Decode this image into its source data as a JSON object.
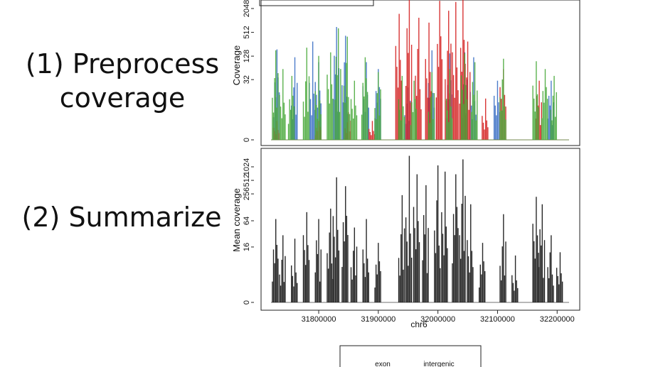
{
  "steps": {
    "step1_line1": "(1) Preprocess",
    "step1_line2": "coverage",
    "step2": "(2) Summarize"
  },
  "chart_data": [
    {
      "type": "area",
      "ylabel": "Coverage",
      "yscale": "log",
      "yticks": [
        0,
        32,
        128,
        512,
        2048
      ],
      "series": [
        {
          "color": "#3a6fc4",
          "values": [
            [
              31730000,
              190
            ],
            [
              31760000,
              120
            ],
            [
              31790000,
              300
            ],
            [
              31800000,
              90
            ],
            [
              31830000,
              700
            ],
            [
              31845000,
              420
            ],
            [
              31880000,
              90
            ],
            [
              31900000,
              60
            ],
            [
              31950000,
              20
            ],
            [
              31990000,
              180
            ],
            [
              32020000,
              150
            ],
            [
              32045000,
              160
            ],
            [
              32060000,
              120
            ],
            [
              32100000,
              30
            ],
            [
              32190000,
              30
            ]
          ]
        },
        {
          "color": "#d42020",
          "values": [
            [
              31730000,
              2
            ],
            [
              31800000,
              2
            ],
            [
              31850000,
              4
            ],
            [
              31890000,
              2
            ],
            [
              31935000,
              1500
            ],
            [
              31952000,
              6000
            ],
            [
              31968000,
              1200
            ],
            [
              31985000,
              900
            ],
            [
              32003000,
              3200
            ],
            [
              32018000,
              1800
            ],
            [
              32030000,
              3000
            ],
            [
              32042000,
              4500
            ],
            [
              32050000,
              300
            ],
            [
              32080000,
              10
            ],
            [
              32110000,
              60
            ],
            [
              32170000,
              30
            ]
          ]
        },
        {
          "color": "#4aaa3c",
          "values": [
            [
              31728000,
              180
            ],
            [
              31740000,
              60
            ],
            [
              31755000,
              40
            ],
            [
              31780000,
              210
            ],
            [
              31800000,
              130
            ],
            [
              31820000,
              160
            ],
            [
              31833000,
              650
            ],
            [
              31848000,
              400
            ],
            [
              31860000,
              30
            ],
            [
              31878000,
              120
            ],
            [
              31900000,
              50
            ],
            [
              31940000,
              40
            ],
            [
              31960000,
              30
            ],
            [
              31990000,
              50
            ],
            [
              32020000,
              60
            ],
            [
              32045000,
              150
            ],
            [
              32062000,
              90
            ],
            [
              32110000,
              110
            ],
            [
              32165000,
              95
            ],
            [
              32180000,
              60
            ],
            [
              32195000,
              40
            ]
          ]
        }
      ]
    },
    {
      "type": "area",
      "xlabel": "chr6",
      "ylabel": "Mean coverage",
      "yscale": "log",
      "yticks": [
        0,
        16,
        64,
        256,
        512,
        1024
      ],
      "xticks": [
        31800000,
        31900000,
        32000000,
        32100000,
        32200000
      ],
      "xlim": [
        31720000,
        32220000
      ],
      "series": [
        {
          "color": "#111111",
          "values": [
            [
              31728000,
              70
            ],
            [
              31740000,
              30
            ],
            [
              31760000,
              25
            ],
            [
              31780000,
              100
            ],
            [
              31800000,
              70
            ],
            [
              31820000,
              120
            ],
            [
              31830000,
              600
            ],
            [
              31845000,
              380
            ],
            [
              31860000,
              45
            ],
            [
              31880000,
              70
            ],
            [
              31900000,
              20
            ],
            [
              31940000,
              240
            ],
            [
              31952000,
              1800
            ],
            [
              31965000,
              700
            ],
            [
              31980000,
              400
            ],
            [
              32000000,
              1100
            ],
            [
              32012000,
              800
            ],
            [
              32030000,
              700
            ],
            [
              32042000,
              1500
            ],
            [
              32055000,
              150
            ],
            [
              32075000,
              20
            ],
            [
              32110000,
              90
            ],
            [
              32130000,
              10
            ],
            [
              32165000,
              220
            ],
            [
              32175000,
              150
            ],
            [
              32190000,
              30
            ],
            [
              32205000,
              12
            ]
          ]
        }
      ]
    }
  ],
  "legend": {
    "entries": [
      "exon",
      "intergenic"
    ]
  }
}
